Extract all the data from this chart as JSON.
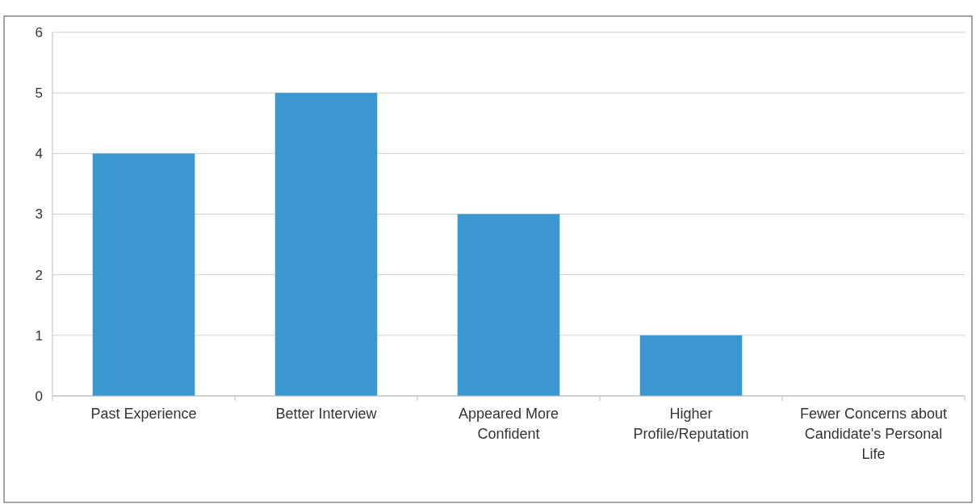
{
  "chart_data": {
    "type": "bar",
    "categories": [
      "Past Experience",
      "Better Interview",
      "Appeared More Confident",
      "Higher Profile/Reputation",
      "Fewer Concerns about Candidate's Personal Life"
    ],
    "values": [
      4,
      5,
      3,
      1,
      0
    ],
    "color": "#3b97d1",
    "ylim": [
      0,
      6
    ],
    "yticks": [
      0,
      1,
      2,
      3,
      4,
      5,
      6
    ],
    "grid": "y"
  }
}
